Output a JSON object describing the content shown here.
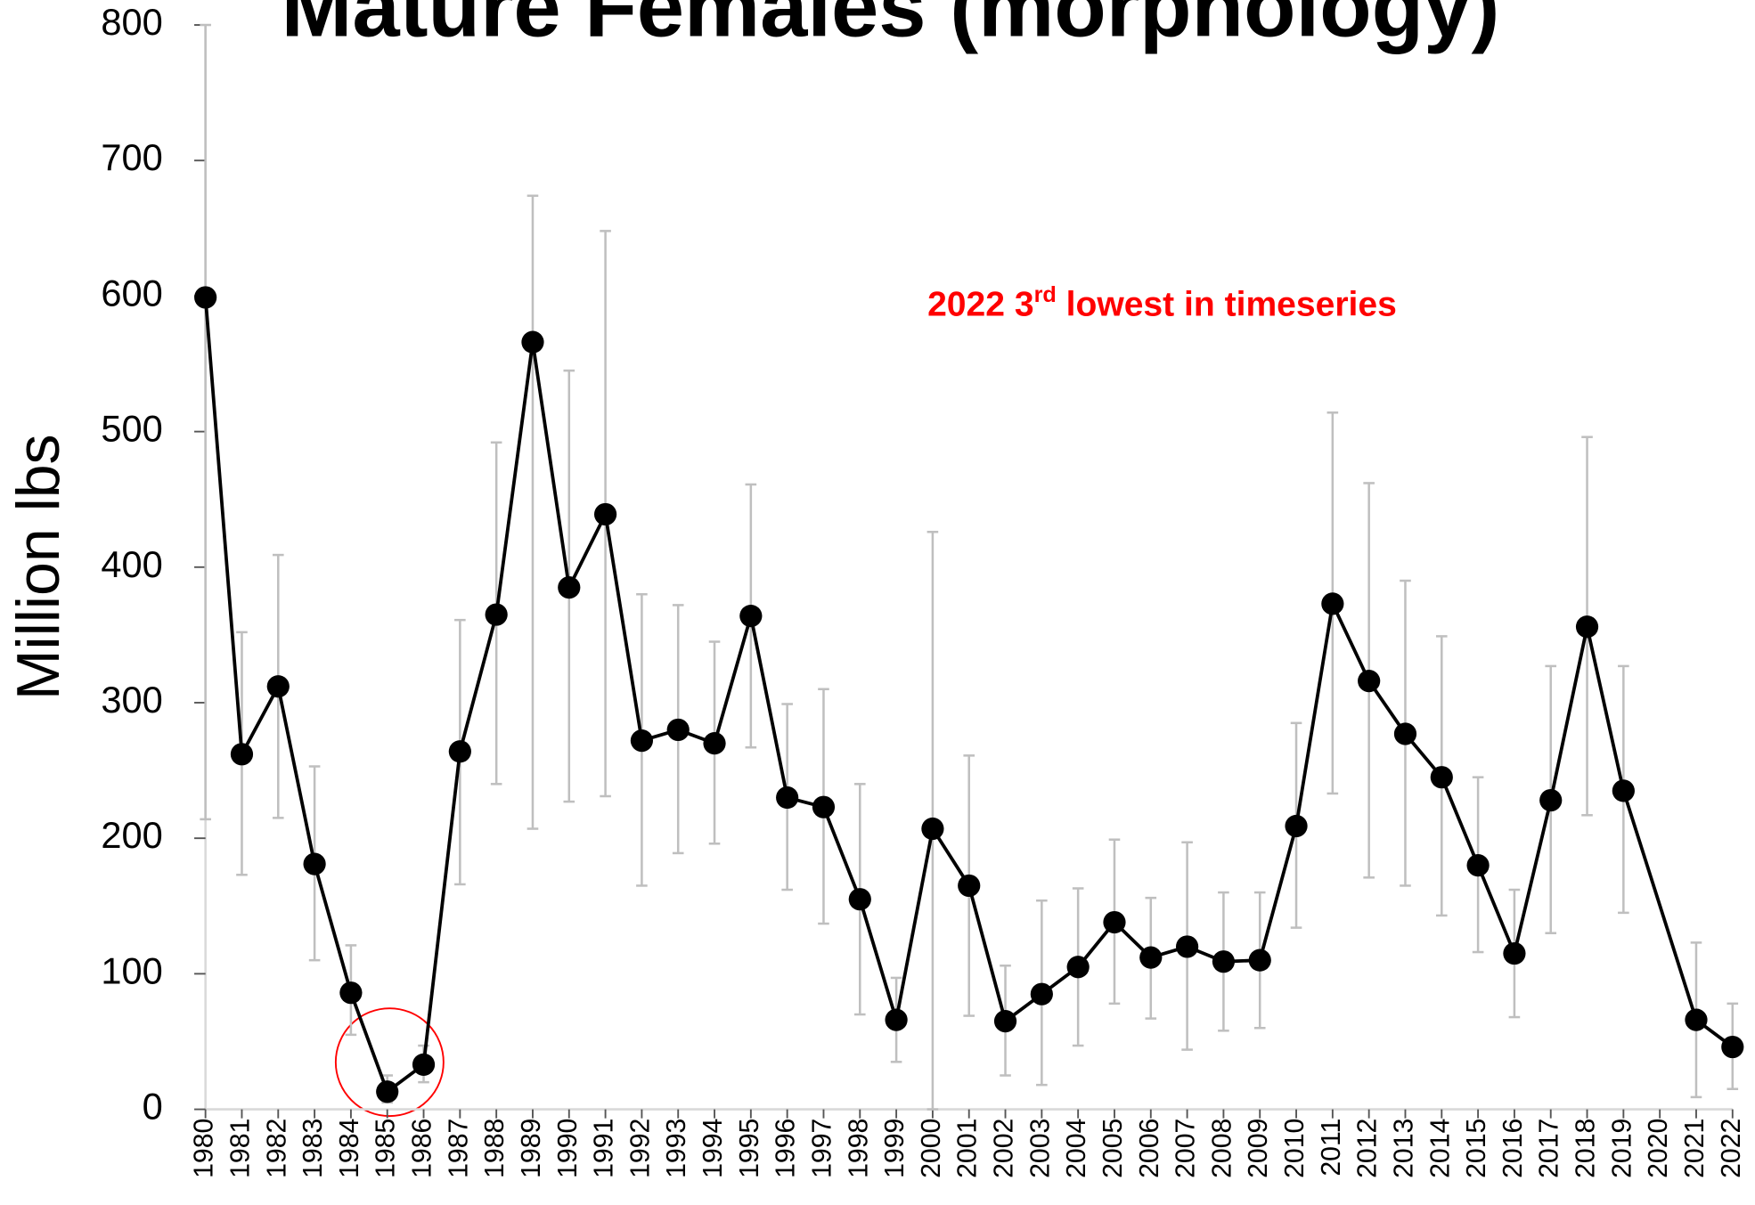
{
  "chart_data": {
    "type": "line",
    "title": "Mature Females  (morphology)",
    "annotation": [
      "2022 3",
      "rd",
      " lowest in timeseries"
    ],
    "y_label": "Million lbs",
    "categories": [
      "1980",
      "1981",
      "1982",
      "1983",
      "1984",
      "1985",
      "1986",
      "1987",
      "1988",
      "1989",
      "1990",
      "1991",
      "1992",
      "1993",
      "1994",
      "1995",
      "1996",
      "1997",
      "1998",
      "1999",
      "2000",
      "2001",
      "2002",
      "2003",
      "2004",
      "2005",
      "2006",
      "2007",
      "2008",
      "2009",
      "2010",
      "2011",
      "2012",
      "2013",
      "2014",
      "2015",
      "2016",
      "2017",
      "2018",
      "2019",
      "2020",
      "2021",
      "2022"
    ],
    "values": [
      599,
      262,
      312,
      181,
      86,
      13,
      33,
      264,
      365,
      566,
      385,
      439,
      272,
      280,
      270,
      364,
      230,
      223,
      155,
      66,
      207,
      165,
      65,
      85,
      105,
      138,
      112,
      120,
      109,
      110,
      209,
      373,
      316,
      277,
      245,
      180,
      115,
      228,
      356,
      235,
      null,
      66,
      46
    ],
    "lower": [
      214,
      173,
      215,
      110,
      55,
      5,
      20,
      166,
      240,
      207,
      227,
      231,
      165,
      189,
      196,
      267,
      162,
      137,
      70,
      35,
      0,
      69,
      25,
      18,
      47,
      78,
      67,
      44,
      58,
      60,
      134,
      233,
      171,
      165,
      143,
      116,
      68,
      130,
      217,
      145,
      null,
      9,
      15
    ],
    "upper": [
      800,
      352,
      409,
      253,
      121,
      25,
      47,
      361,
      492,
      674,
      545,
      648,
      380,
      372,
      345,
      461,
      299,
      310,
      240,
      97,
      426,
      261,
      106,
      154,
      163,
      199,
      156,
      197,
      160,
      160,
      285,
      514,
      462,
      390,
      349,
      245,
      162,
      327,
      496,
      327,
      null,
      123,
      78
    ],
    "color": "#000000",
    "error_color": "#bfbfbf",
    "ylim": [
      0,
      800
    ],
    "yticks": [
      0,
      100,
      200,
      300,
      400,
      500,
      600,
      700,
      800
    ]
  }
}
